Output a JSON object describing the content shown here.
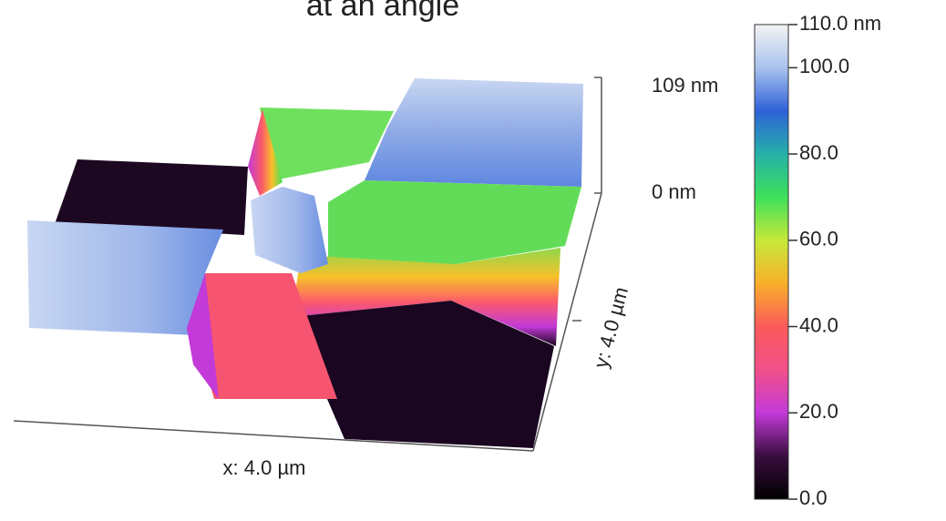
{
  "chart_data": {
    "type": "surface",
    "title": "at an angle",
    "xlabel": "x: 4.0 µm",
    "ylabel": "y: 4.0 µm",
    "zlim": [
      0,
      109
    ],
    "zticks": [
      {
        "value": 0,
        "label": "0 nm"
      },
      {
        "value": 109,
        "label": "109 nm"
      }
    ],
    "colorbar": {
      "clim": [
        0,
        110
      ],
      "colormap": [
        "#000000",
        "#3a0d40",
        "#c23ad8",
        "#f2508a",
        "#fb5a5a",
        "#f8b02a",
        "#c6e83a",
        "#3ee05a",
        "#25b0a8",
        "#2f62d8",
        "#a9c2ee",
        "#f4f4f4"
      ],
      "ticks": [
        {
          "value": 0,
          "label": "0.0"
        },
        {
          "value": 20,
          "label": "20.0"
        },
        {
          "value": 40,
          "label": "40.0"
        },
        {
          "value": 60,
          "label": "60.0"
        },
        {
          "value": 80,
          "label": "80.0"
        },
        {
          "value": 100,
          "label": "100.0"
        },
        {
          "value": 110,
          "label": "110.0 nm"
        }
      ]
    }
  }
}
